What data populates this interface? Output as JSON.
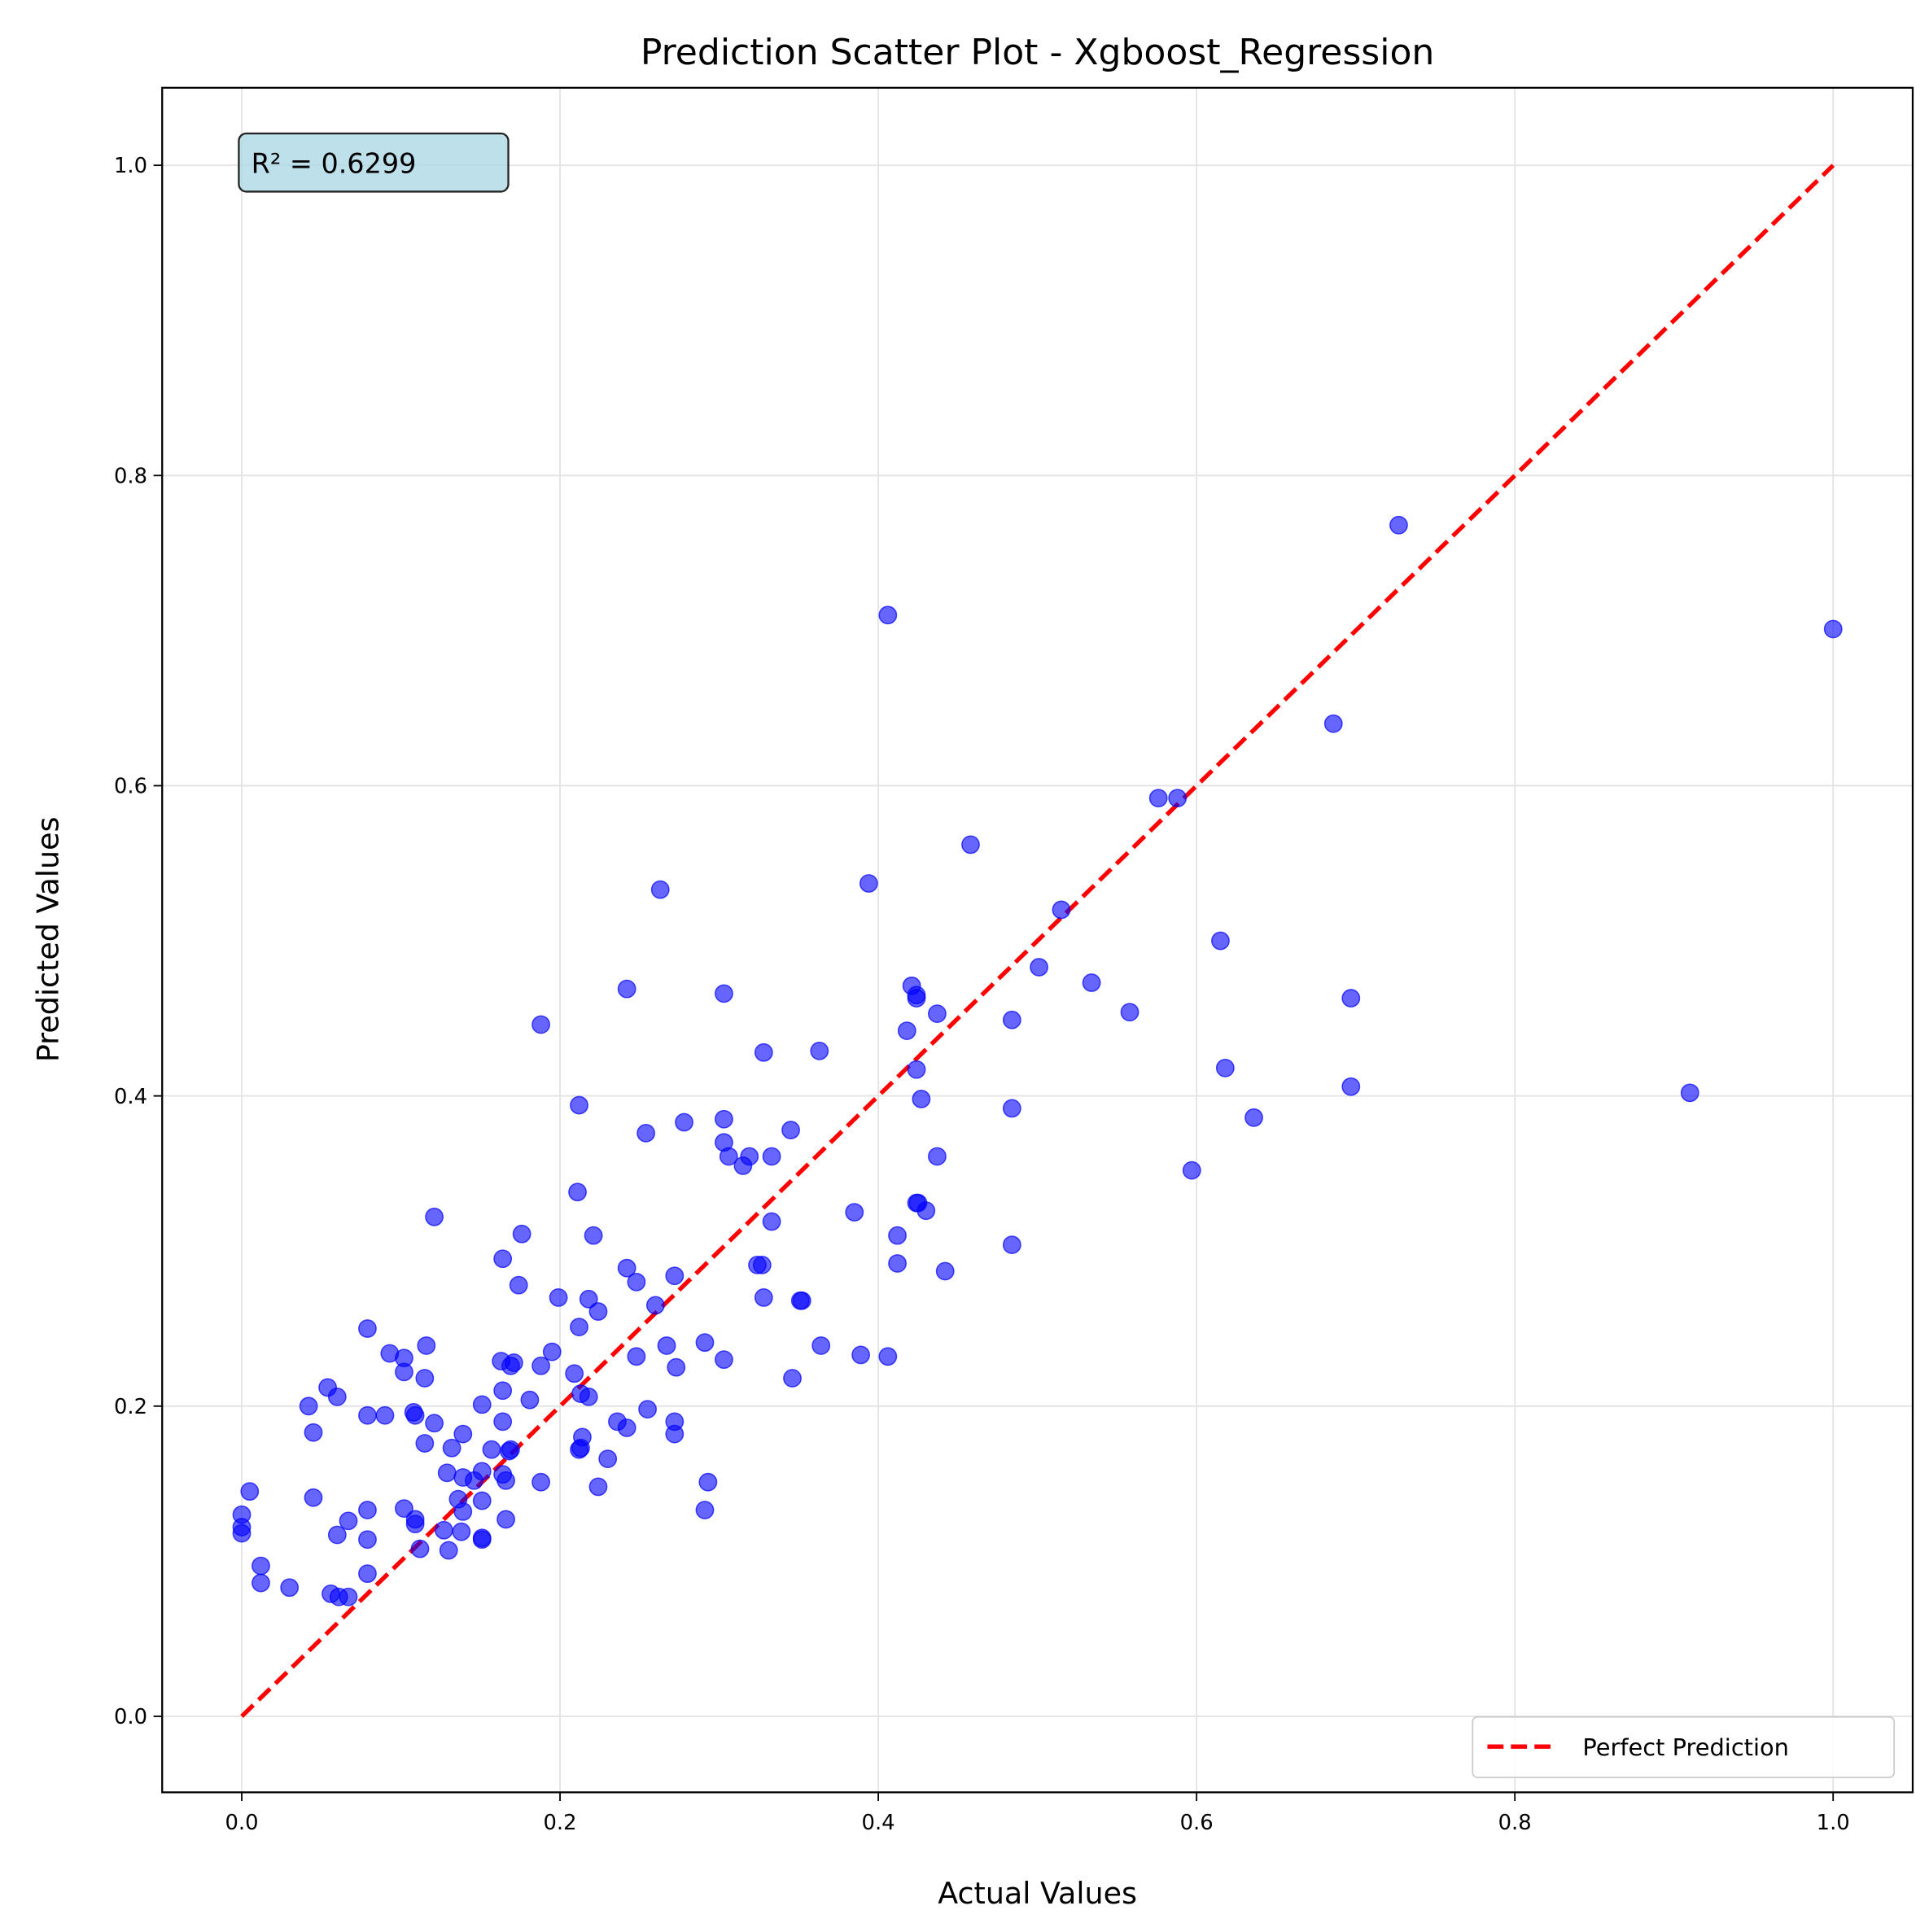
{
  "chart_data": {
    "type": "scatter",
    "title": "Prediction Scatter Plot - Xgboost_Regression",
    "xlabel": "Actual Values",
    "ylabel": "Predicted Values",
    "xlim": [
      -0.05,
      1.05
    ],
    "ylim": [
      -0.049,
      1.05
    ],
    "xticks": [
      "0.0",
      "0.2",
      "0.4",
      "0.6",
      "0.8",
      "1.0"
    ],
    "yticks": [
      "0.0",
      "0.2",
      "0.4",
      "0.6",
      "0.8",
      "1.0"
    ],
    "grid": true,
    "legend_position": "lower-right",
    "annotation": "R² = 0.6299",
    "colors": {
      "points": "#0000ff",
      "reference_line": "#ff0000",
      "annotation_box": "#add8e6"
    },
    "reference_line": {
      "name": "Perfect Prediction",
      "x": [
        0,
        1
      ],
      "y": [
        0,
        1
      ],
      "style": "dashed"
    },
    "points": [
      [
        0.727,
        0.768
      ],
      [
        0.406,
        0.71
      ],
      [
        1.0,
        0.701
      ],
      [
        0.686,
        0.64
      ],
      [
        0.576,
        0.592
      ],
      [
        0.588,
        0.592
      ],
      [
        0.458,
        0.562
      ],
      [
        0.394,
        0.537
      ],
      [
        0.263,
        0.533
      ],
      [
        0.515,
        0.52
      ],
      [
        0.615,
        0.5
      ],
      [
        0.501,
        0.483
      ],
      [
        0.534,
        0.473
      ],
      [
        0.697,
        0.463
      ],
      [
        0.421,
        0.471
      ],
      [
        0.424,
        0.465
      ],
      [
        0.424,
        0.463
      ],
      [
        0.242,
        0.469
      ],
      [
        0.303,
        0.466
      ],
      [
        0.437,
        0.453
      ],
      [
        0.558,
        0.454
      ],
      [
        0.484,
        0.449
      ],
      [
        0.188,
        0.446
      ],
      [
        0.418,
        0.442
      ],
      [
        0.328,
        0.428
      ],
      [
        0.363,
        0.429
      ],
      [
        0.618,
        0.418
      ],
      [
        0.424,
        0.417
      ],
      [
        0.697,
        0.406
      ],
      [
        0.91,
        0.402
      ],
      [
        0.427,
        0.398
      ],
      [
        0.212,
        0.394
      ],
      [
        0.484,
        0.392
      ],
      [
        0.636,
        0.386
      ],
      [
        0.278,
        0.383
      ],
      [
        0.303,
        0.385
      ],
      [
        0.254,
        0.376
      ],
      [
        0.345,
        0.378
      ],
      [
        0.303,
        0.37
      ],
      [
        0.306,
        0.361
      ],
      [
        0.319,
        0.361
      ],
      [
        0.333,
        0.361
      ],
      [
        0.437,
        0.361
      ],
      [
        0.315,
        0.355
      ],
      [
        0.597,
        0.352
      ],
      [
        0.211,
        0.338
      ],
      [
        0.121,
        0.322
      ],
      [
        0.385,
        0.325
      ],
      [
        0.424,
        0.331
      ],
      [
        0.425,
        0.331
      ],
      [
        0.43,
        0.326
      ],
      [
        0.333,
        0.319
      ],
      [
        0.176,
        0.311
      ],
      [
        0.221,
        0.31
      ],
      [
        0.412,
        0.31
      ],
      [
        0.484,
        0.304
      ],
      [
        0.164,
        0.295
      ],
      [
        0.242,
        0.289
      ],
      [
        0.324,
        0.291
      ],
      [
        0.327,
        0.291
      ],
      [
        0.412,
        0.292
      ],
      [
        0.442,
        0.287
      ],
      [
        0.272,
        0.284
      ],
      [
        0.248,
        0.28
      ],
      [
        0.174,
        0.278
      ],
      [
        0.199,
        0.27
      ],
      [
        0.218,
        0.269
      ],
      [
        0.328,
        0.27
      ],
      [
        0.351,
        0.268
      ],
      [
        0.352,
        0.268
      ],
      [
        0.26,
        0.265
      ],
      [
        0.224,
        0.261
      ],
      [
        0.212,
        0.251
      ],
      [
        0.079,
        0.25
      ],
      [
        0.364,
        0.239
      ],
      [
        0.267,
        0.239
      ],
      [
        0.116,
        0.239
      ],
      [
        0.291,
        0.241
      ],
      [
        0.102,
        0.231
      ],
      [
        0.389,
        0.233
      ],
      [
        0.406,
        0.232
      ],
      [
        0.303,
        0.23
      ],
      [
        0.248,
        0.232
      ],
      [
        0.163,
        0.229
      ],
      [
        0.171,
        0.228
      ],
      [
        0.169,
        0.226
      ],
      [
        0.195,
        0.235
      ],
      [
        0.093,
        0.234
      ],
      [
        0.188,
        0.226
      ],
      [
        0.273,
        0.225
      ],
      [
        0.102,
        0.222
      ],
      [
        0.209,
        0.221
      ],
      [
        0.115,
        0.218
      ],
      [
        0.346,
        0.218
      ],
      [
        0.054,
        0.212
      ],
      [
        0.164,
        0.21
      ],
      [
        0.213,
        0.208
      ],
      [
        0.218,
        0.206
      ],
      [
        0.06,
        0.206
      ],
      [
        0.181,
        0.204
      ],
      [
        0.042,
        0.2
      ],
      [
        0.151,
        0.201
      ],
      [
        0.255,
        0.198
      ],
      [
        0.108,
        0.196
      ],
      [
        0.109,
        0.194
      ],
      [
        0.09,
        0.194
      ],
      [
        0.079,
        0.194
      ],
      [
        0.236,
        0.19
      ],
      [
        0.272,
        0.19
      ],
      [
        0.164,
        0.19
      ],
      [
        0.121,
        0.189
      ],
      [
        0.242,
        0.186
      ],
      [
        0.045,
        0.183
      ],
      [
        0.139,
        0.182
      ],
      [
        0.272,
        0.182
      ],
      [
        0.214,
        0.18
      ],
      [
        0.115,
        0.176
      ],
      [
        0.132,
        0.173
      ],
      [
        0.157,
        0.172
      ],
      [
        0.168,
        0.171
      ],
      [
        0.169,
        0.172
      ],
      [
        0.212,
        0.172
      ],
      [
        0.213,
        0.173
      ],
      [
        0.23,
        0.166
      ],
      [
        0.151,
        0.158
      ],
      [
        0.129,
        0.157
      ],
      [
        0.164,
        0.156
      ],
      [
        0.139,
        0.154
      ],
      [
        0.146,
        0.152
      ],
      [
        0.166,
        0.152
      ],
      [
        0.188,
        0.151
      ],
      [
        0.293,
        0.151
      ],
      [
        0.005,
        0.145
      ],
      [
        0.224,
        0.148
      ],
      [
        0.045,
        0.141
      ],
      [
        0.136,
        0.14
      ],
      [
        0.151,
        0.139
      ],
      [
        0.079,
        0.133
      ],
      [
        0.102,
        0.134
      ],
      [
        0.291,
        0.133
      ],
      [
        0.0,
        0.13
      ],
      [
        0.139,
        0.132
      ],
      [
        0.109,
        0.127
      ],
      [
        0.067,
        0.126
      ],
      [
        0.166,
        0.127
      ],
      [
        0.109,
        0.124
      ],
      [
        0.0,
        0.122
      ],
      [
        0.0,
        0.118
      ],
      [
        0.127,
        0.12
      ],
      [
        0.138,
        0.119
      ],
      [
        0.06,
        0.117
      ],
      [
        0.079,
        0.114
      ],
      [
        0.151,
        0.115
      ],
      [
        0.151,
        0.114
      ],
      [
        0.112,
        0.108
      ],
      [
        0.13,
        0.107
      ],
      [
        0.012,
        0.097
      ],
      [
        0.079,
        0.092
      ],
      [
        0.012,
        0.086
      ],
      [
        0.03,
        0.083
      ],
      [
        0.056,
        0.079
      ],
      [
        0.061,
        0.077
      ],
      [
        0.067,
        0.077
      ]
    ]
  }
}
